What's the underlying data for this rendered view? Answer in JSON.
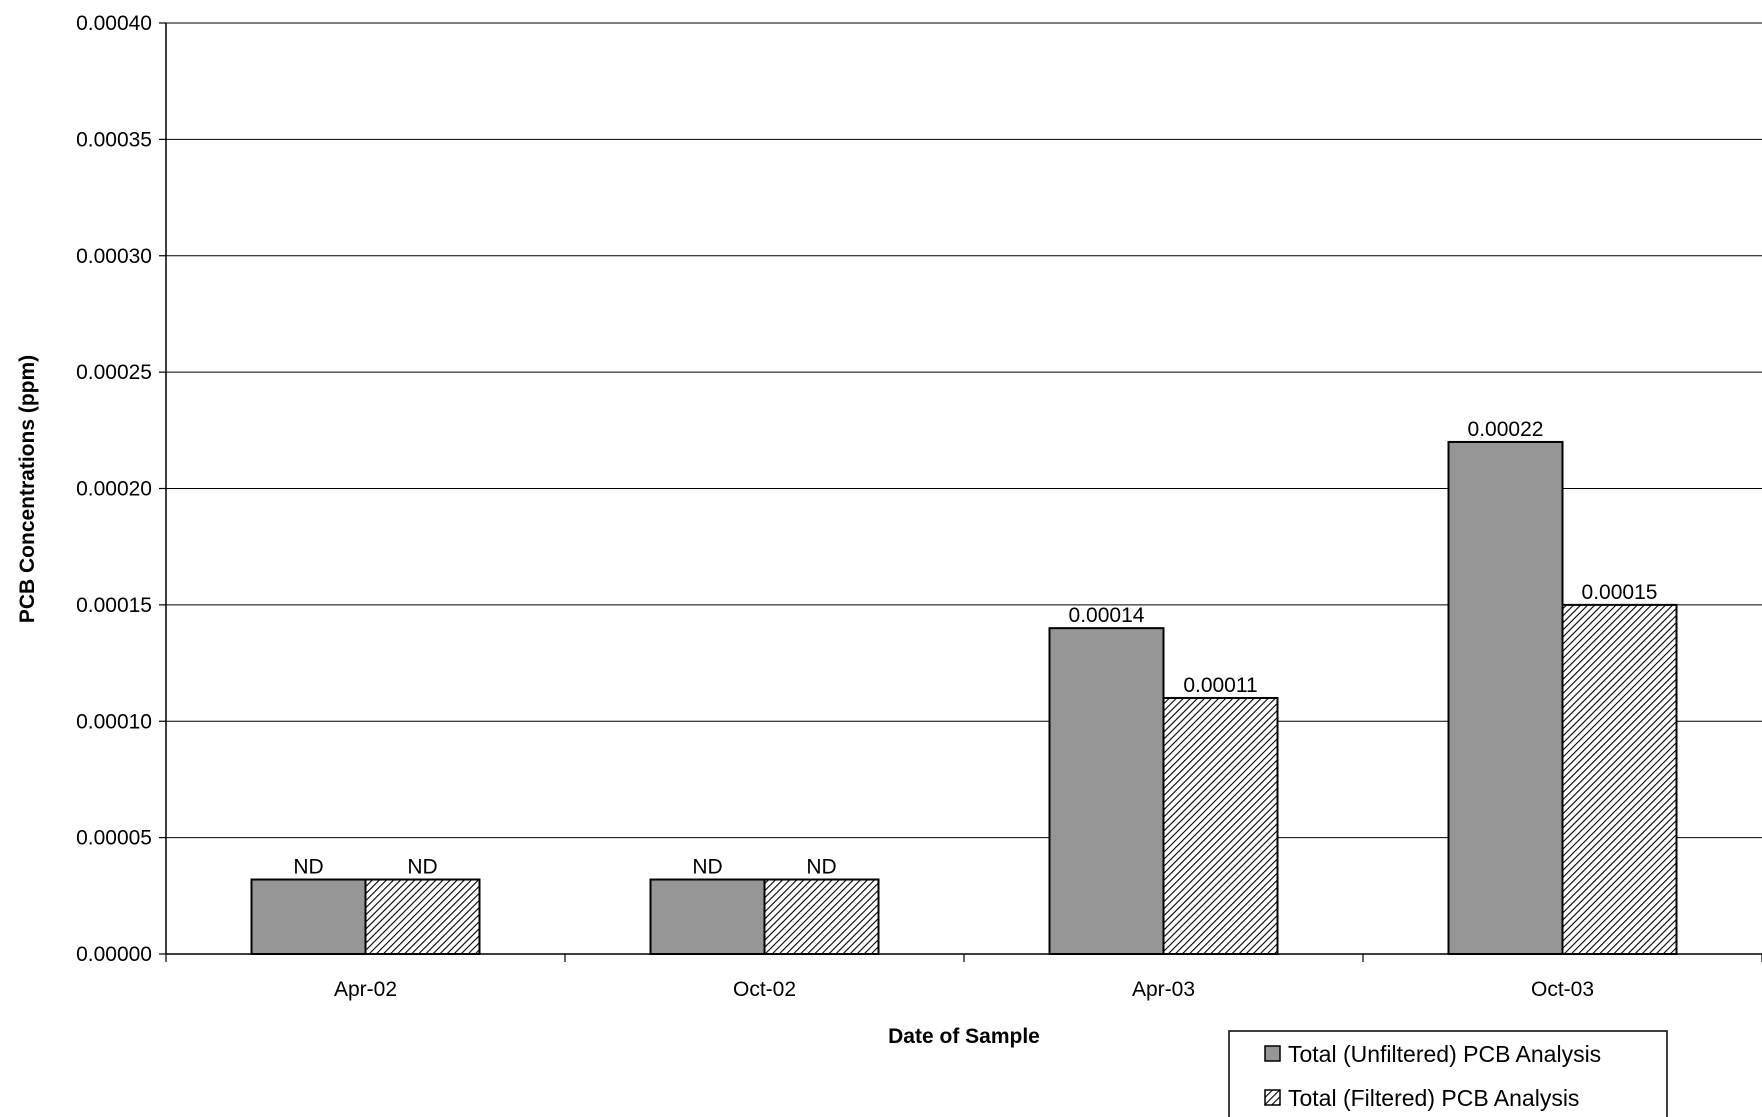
{
  "chart_data": {
    "type": "bar",
    "title": "",
    "xlabel": "Date of Sample",
    "ylabel": "PCB Concentrations (ppm)",
    "categories": [
      "Apr-02",
      "Oct-02",
      "Apr-03",
      "Oct-03"
    ],
    "ylim": [
      0,
      0.0004
    ],
    "y_ticks": [
      "0.00000",
      "0.00005",
      "0.00010",
      "0.00015",
      "0.00020",
      "0.00025",
      "0.00030",
      "0.00035",
      "0.00040"
    ],
    "grid": true,
    "legend_position": "bottom-right",
    "series": [
      {
        "name": "Total (Unfiltered) PCB Analysis",
        "color": "#969696",
        "pattern": "solid",
        "values": [
          3.2e-05,
          3.2e-05,
          0.00014,
          0.00022
        ],
        "labels": [
          "ND",
          "ND",
          "0.00014",
          "0.00022"
        ]
      },
      {
        "name": "Total (Filtered) PCB Analysis",
        "color": "#000000",
        "pattern": "diagonal-hatch",
        "values": [
          3.2e-05,
          3.2e-05,
          0.00011,
          0.00015
        ],
        "labels": [
          "ND",
          "ND",
          "0.00011",
          "0.00015"
        ]
      }
    ]
  }
}
